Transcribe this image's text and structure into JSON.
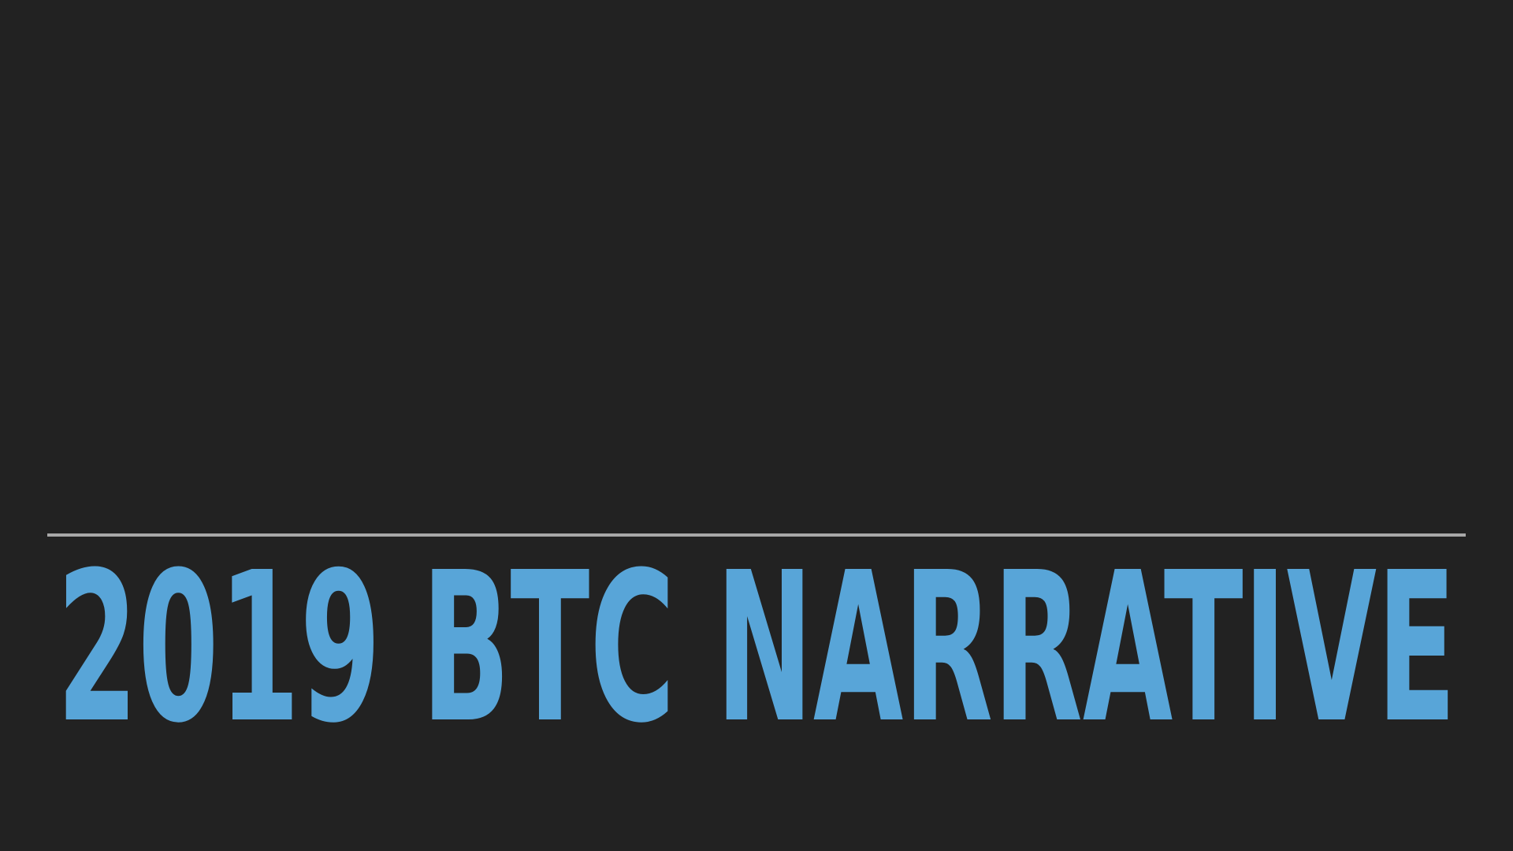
{
  "slide": {
    "title": "2019 BTC NARRATIVE"
  },
  "colors": {
    "background": "#222222",
    "title": "#58a5d8",
    "divider": "#a8a8a8"
  }
}
